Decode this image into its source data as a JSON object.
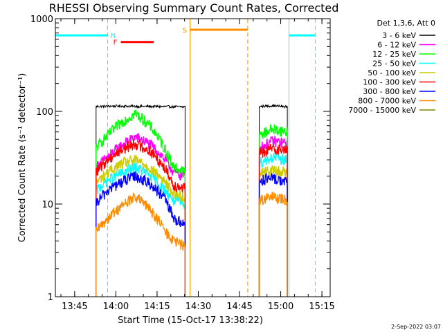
{
  "chart_data": {
    "type": "line",
    "title": "RHESSI Observing Summary Count Rates, Corrected",
    "xlabel": "Start Time (15-Oct-17 13:38:22)",
    "ylabel": "Corrected Count Rate (s⁻¹ detector⁻¹)",
    "yscale": "log",
    "ylim": [
      1,
      1000
    ],
    "xlim_minutes": [
      13.633,
      15.3
    ],
    "x_tick_labels": [
      "13:45",
      "14:00",
      "14:15",
      "14:30",
      "14:45",
      "15:00",
      "15:15"
    ],
    "y_tick_labels": [
      "1",
      "10",
      "100",
      "1000"
    ],
    "legend": {
      "header": "Det 1,3,6, Att 0",
      "position": "top-right-outside"
    },
    "series": [
      {
        "name": "3 - 6 keV",
        "color": "#000000",
        "segments": [
          {
            "t": [
              13.88,
              14.0,
              14.2,
              14.42
            ],
            "v": [
              113,
              114,
              113,
              112
            ]
          },
          {
            "t": [
              14.87,
              14.95,
              15.04
            ],
            "v": [
              113,
              115,
              112
            ]
          }
        ]
      },
      {
        "name": "6 - 12 keV",
        "color": "#ff00ff",
        "segments": [
          {
            "t": [
              13.88,
              13.95,
              14.05,
              14.12,
              14.2,
              14.3,
              14.35,
              14.42
            ],
            "v": [
              25,
              32,
              45,
              53,
              45,
              30,
              22,
              20
            ]
          },
          {
            "t": [
              14.87,
              14.95,
              15.04
            ],
            "v": [
              40,
              48,
              45
            ]
          }
        ]
      },
      {
        "name": "12 - 25 keV",
        "color": "#00ff00",
        "segments": [
          {
            "t": [
              13.88,
              13.95,
              14.05,
              14.12,
              14.2,
              14.3,
              14.35,
              14.42
            ],
            "v": [
              40,
              55,
              80,
              95,
              72,
              38,
              25,
              22
            ]
          },
          {
            "t": [
              14.87,
              14.95,
              15.04
            ],
            "v": [
              55,
              65,
              60
            ]
          }
        ]
      },
      {
        "name": "25 - 50 keV",
        "color": "#00ffff",
        "segments": [
          {
            "t": [
              13.88,
              13.95,
              14.05,
              14.12,
              14.2,
              14.3,
              14.35,
              14.42
            ],
            "v": [
              14,
              18,
              22,
              25,
              21,
              14,
              11,
              10
            ]
          },
          {
            "t": [
              14.87,
              14.95,
              15.04
            ],
            "v": [
              28,
              32,
              30
            ]
          }
        ]
      },
      {
        "name": "50 - 100 keV",
        "color": "#cccc00",
        "segments": [
          {
            "t": [
              13.88,
              13.95,
              14.05,
              14.12,
              14.2,
              14.3,
              14.35,
              14.42
            ],
            "v": [
              17,
              22,
              28,
              30,
              25,
              17,
              13,
              12
            ]
          },
          {
            "t": [
              14.87,
              14.95,
              15.04
            ],
            "v": [
              22,
              23,
              22
            ]
          }
        ]
      },
      {
        "name": "100 - 300 keV",
        "color": "#ff0000",
        "segments": [
          {
            "t": [
              13.88,
              13.95,
              14.05,
              14.12,
              14.2,
              14.3,
              14.35,
              14.42
            ],
            "v": [
              22,
              30,
              40,
              45,
              38,
              24,
              16,
              15
            ]
          },
          {
            "t": [
              14.87,
              14.95,
              15.04
            ],
            "v": [
              35,
              40,
              38
            ]
          }
        ]
      },
      {
        "name": "300 - 800 keV",
        "color": "#0000ff",
        "segments": [
          {
            "t": [
              13.88,
              13.95,
              14.05,
              14.12,
              14.2,
              14.3,
              14.35,
              14.42
            ],
            "v": [
              10,
              14,
              18,
              20,
              17,
              11,
              7,
              6
            ]
          },
          {
            "t": [
              14.87,
              14.95,
              15.04
            ],
            "v": [
              18,
              19,
              17
            ]
          }
        ]
      },
      {
        "name": "800 - 7000 keV",
        "color": "#ff8c00",
        "segments": [
          {
            "t": [
              13.88,
              13.95,
              14.05,
              14.12,
              14.2,
              14.3,
              14.35,
              14.42
            ],
            "v": [
              5,
              7,
              10,
              12,
              9,
              5,
              4,
              3.5
            ]
          },
          {
            "t": [
              14.87,
              14.95,
              15.04
            ],
            "v": [
              11,
              12,
              11
            ]
          }
        ]
      },
      {
        "name": "7000 - 15000 keV",
        "color": "#808000",
        "segments": []
      }
    ],
    "annotations": [
      {
        "label": "N",
        "kind": "night",
        "color": "#00ffff",
        "bars": [
          [
            13.633,
            13.95
          ],
          [
            15.05,
            15.21
          ]
        ],
        "dashed_at": [
          13.95,
          15.21
        ],
        "solid_at": [
          13.633,
          15.05
        ],
        "level": 660
      },
      {
        "label": "F",
        "kind": "flare",
        "color": "#ff0000",
        "bars": [
          [
            14.03,
            14.23
          ]
        ],
        "level": 560
      },
      {
        "label": "S",
        "kind": "saa",
        "color": "#ff8c00",
        "bars": [
          [
            14.45,
            14.8
          ]
        ],
        "solid_at": [
          14.45
        ],
        "dashed_at": [
          14.8
        ],
        "level": 760
      }
    ]
  },
  "footer": {
    "timestamp": "2-Sep-2022 03:07"
  }
}
